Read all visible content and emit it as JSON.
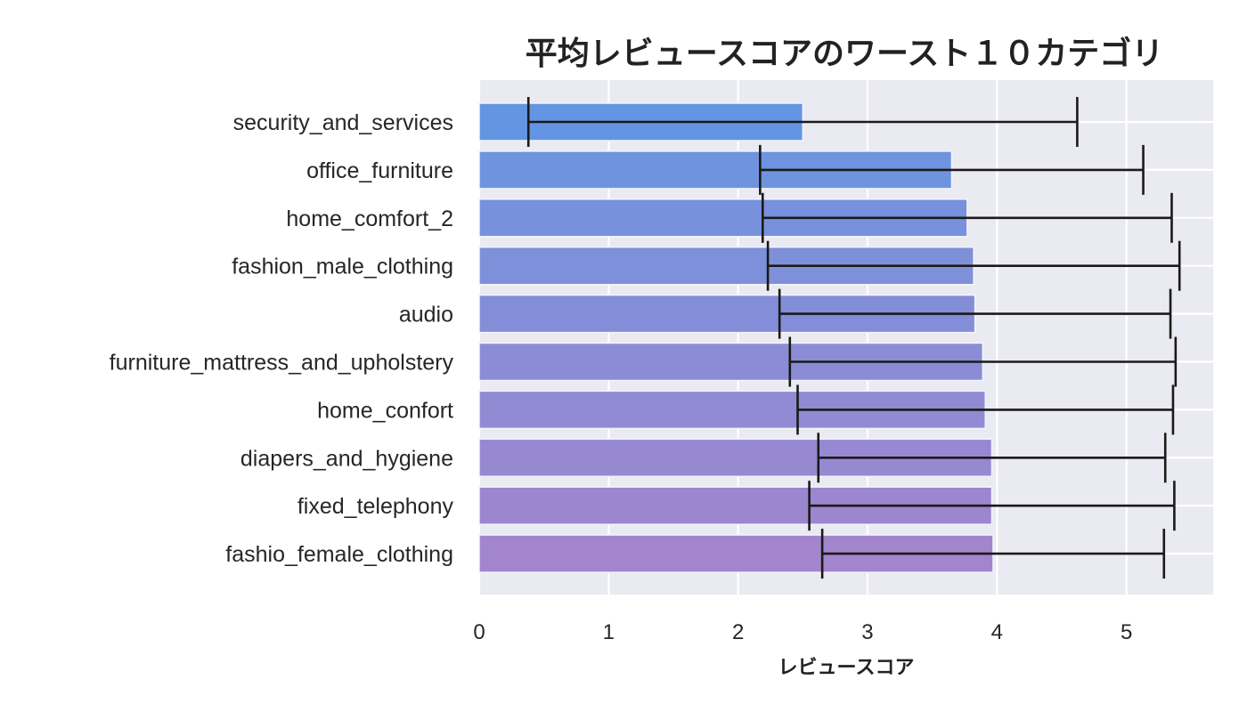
{
  "chart_data": {
    "type": "bar",
    "orientation": "horizontal",
    "title": "平均レビュースコアのワースト１０カテゴリ",
    "xlabel": "レビュースコア",
    "ylabel": "",
    "xlim": [
      0,
      5.67
    ],
    "xticks": [
      "0",
      "1",
      "2",
      "3",
      "4",
      "5"
    ],
    "grid": true,
    "categories": [
      "security_and_services",
      "office_furniture",
      "home_comfort_2",
      "fashion_male_clothing",
      "audio",
      "furniture_mattress_and_upholstery",
      "home_confort",
      "diapers_and_hygiene",
      "fixed_telephony",
      "fashio_female_clothing"
    ],
    "values": [
      2.5,
      3.65,
      3.77,
      3.82,
      3.83,
      3.89,
      3.91,
      3.96,
      3.96,
      3.97
    ],
    "errors": [
      2.12,
      1.48,
      1.58,
      1.59,
      1.51,
      1.49,
      1.45,
      1.34,
      1.41,
      1.32
    ],
    "colors": [
      "#6495e2",
      "#6f94df",
      "#7891dc",
      "#7f90da",
      "#848dd7",
      "#8a8cd5",
      "#918bd3",
      "#9789d1",
      "#9c86cf",
      "#a385cd"
    ],
    "background": "#eaeaf2"
  }
}
